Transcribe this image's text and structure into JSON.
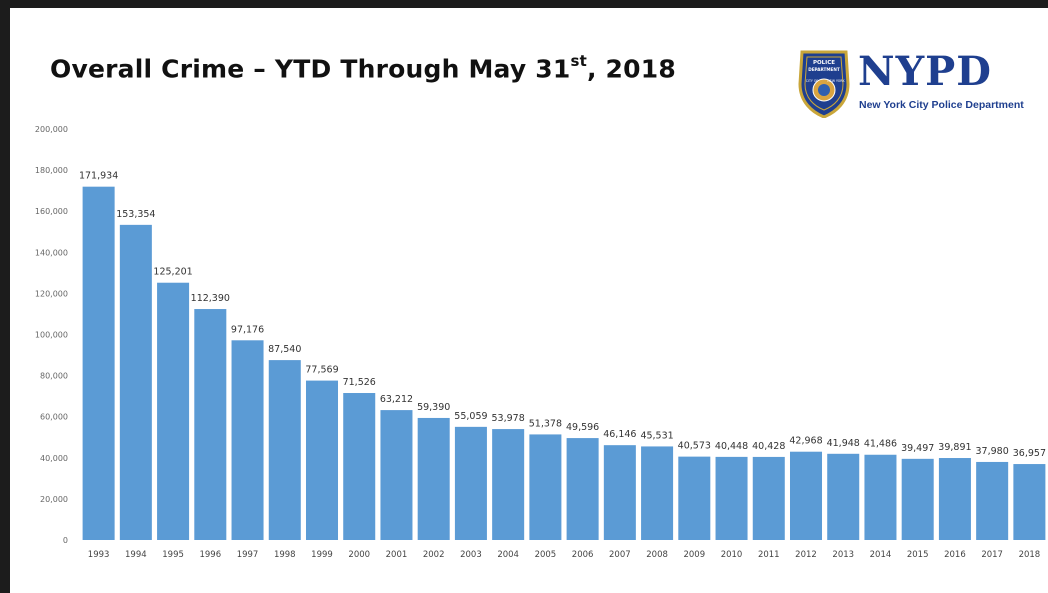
{
  "header": {
    "title_main": "Overall Crime – YTD Through May 31",
    "title_sup": "st",
    "title_end": ", 2018"
  },
  "logo": {
    "badge_line1": "POLICE",
    "badge_line2": "DEPARTMENT",
    "badge_line3": "CITY OF",
    "badge_line4": "NEW YORK",
    "wordmark": "NYPD",
    "subtitle": "New York City Police Department",
    "brand_color": "#1f3f8f"
  },
  "chart_data": {
    "type": "bar",
    "categories": [
      "1993",
      "1994",
      "1995",
      "1996",
      "1997",
      "1998",
      "1999",
      "2000",
      "2001",
      "2002",
      "2003",
      "2004",
      "2005",
      "2006",
      "2007",
      "2008",
      "2009",
      "2010",
      "2011",
      "2012",
      "2013",
      "2014",
      "2015",
      "2016",
      "2017",
      "2018"
    ],
    "values": [
      171934,
      153354,
      125201,
      112390,
      97176,
      87540,
      77569,
      71526,
      63212,
      59390,
      55059,
      53978,
      51378,
      49596,
      46146,
      45531,
      40573,
      40448,
      40428,
      42968,
      41948,
      41486,
      39497,
      39891,
      37980,
      36957
    ],
    "data_labels": [
      "171,934",
      "153,354",
      "125,201",
      "112,390",
      "97,176",
      "87,540",
      "77,569",
      "71,526",
      "63,212",
      "59,390",
      "55,059",
      "53,978",
      "51,378",
      "49,596",
      "46,146",
      "45,531",
      "40,573",
      "40,448",
      "40,428",
      "42,968",
      "41,948",
      "41,486",
      "39,497",
      "39,891",
      "37,980",
      "36,957"
    ],
    "yticks": [
      0,
      20000,
      40000,
      60000,
      80000,
      100000,
      120000,
      140000,
      160000,
      180000,
      200000
    ],
    "ytick_labels": [
      "0",
      "20,000",
      "40,000",
      "60,000",
      "80,000",
      "100,000",
      "120,000",
      "140,000",
      "160,000",
      "180,000",
      "200,000"
    ],
    "ylim": [
      0,
      200000
    ],
    "grid": false,
    "legend": "none",
    "bar_color": "#5b9bd5"
  }
}
